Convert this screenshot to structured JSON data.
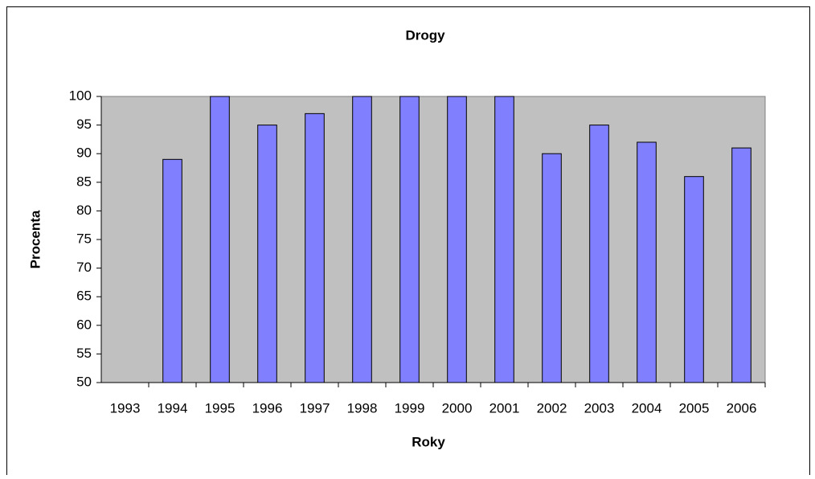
{
  "chart_data": {
    "type": "bar",
    "title": "Drogy",
    "x_label": "Roky",
    "y_label": "Procenta",
    "categories": [
      "1993",
      "1994",
      "1995",
      "1996",
      "1997",
      "1998",
      "1999",
      "2000",
      "2001",
      "2002",
      "2003",
      "2004",
      "2005",
      "2006"
    ],
    "values": [
      null,
      89,
      100,
      95,
      97,
      100,
      100,
      100,
      100,
      90,
      95,
      92,
      86,
      91
    ],
    "color": "#8080ff",
    "ylim": [
      50,
      100
    ],
    "yticks": [
      50,
      55,
      60,
      65,
      70,
      75,
      80,
      85,
      90,
      95,
      100
    ],
    "grid": false
  }
}
